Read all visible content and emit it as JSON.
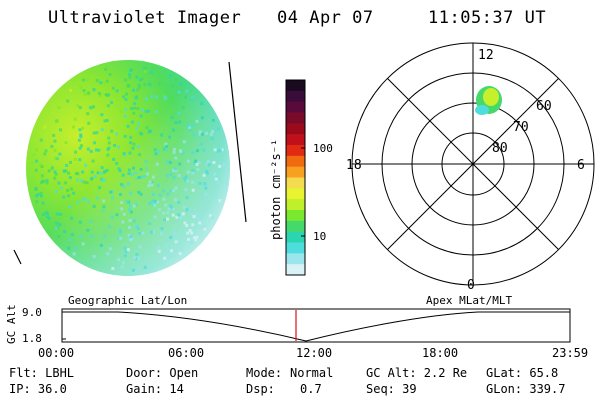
{
  "header": {
    "instrument": "Ultraviolet Imager",
    "date": "04 Apr 07",
    "time": "11:05:37 UT"
  },
  "colorbar": {
    "unit_label": "photon cm⁻²s⁻¹",
    "tick_labels": [
      "100",
      "10"
    ],
    "colors": [
      "#1a0a1f",
      "#3a0c3a",
      "#5a0a3a",
      "#7a0a2a",
      "#9a0a1a",
      "#c0101a",
      "#e02a14",
      "#f26a10",
      "#f8a020",
      "#f4dc50",
      "#e8f430",
      "#bff02a",
      "#7be830",
      "#45d86a",
      "#2ad6b0",
      "#4fdcdc",
      "#9ae6ec",
      "#d8f2f6"
    ]
  },
  "polar_plot": {
    "mlt_labels": {
      "top": "12",
      "left": "18",
      "right": "6",
      "bottom": "0"
    },
    "lat_labels": [
      "60",
      "70",
      "80"
    ]
  },
  "ephemeris": {
    "left_label": "Geographic Lat/Lon",
    "right_label": "Apex MLat/MLT",
    "axis_label": "GC Alt",
    "y_max": "9.0",
    "y_min": "1.8",
    "time_ticks": [
      "00:00",
      "06:00",
      "12:00",
      "18:00",
      "23:59"
    ],
    "marker_color": "#e01010"
  },
  "status": {
    "flt": "Flt: LBHL",
    "ip": "IP: 36.0",
    "door": "Door: Open",
    "gain": "Gain: 14",
    "mode_label": "Mode:",
    "mode_value": "Normal",
    "dsp_label": "Dsp:",
    "dsp_value": "0.7",
    "gc_alt": "GC Alt: 2.2 Re",
    "seq": "Seq: 39",
    "glat": "GLat:  65.8",
    "glon": "GLon: 339.7"
  }
}
